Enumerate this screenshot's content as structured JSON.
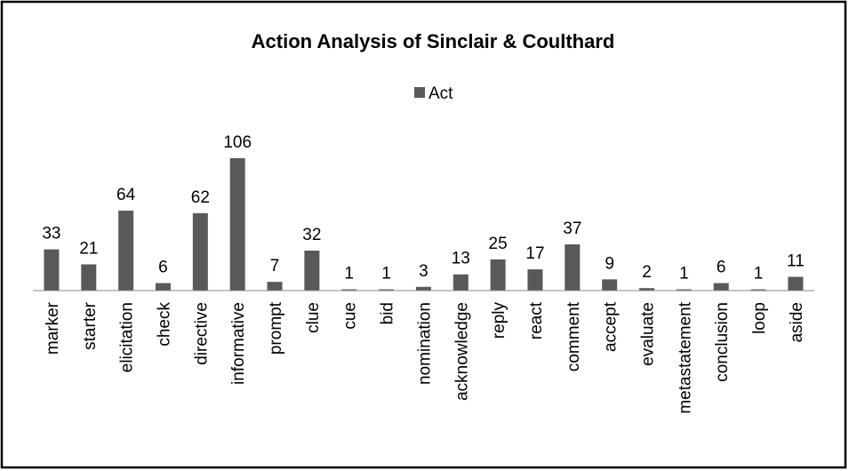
{
  "chart_data": {
    "type": "bar",
    "title": "Action Analysis of Sinclair & Coulthard",
    "categories": [
      "marker",
      "starter",
      "elicitation",
      "check",
      "directive",
      "informative",
      "prompt",
      "clue",
      "cue",
      "bid",
      "nomination",
      "acknowledge",
      "reply",
      "react",
      "comment",
      "accept",
      "evaluate",
      "metastatement",
      "conclusion",
      "loop",
      "aside"
    ],
    "series": [
      {
        "name": "Act",
        "color": "#595959",
        "values": [
          33,
          21,
          64,
          6,
          62,
          106,
          7,
          32,
          1,
          1,
          3,
          13,
          25,
          17,
          37,
          9,
          2,
          1,
          6,
          1,
          11
        ]
      }
    ],
    "legend": "top",
    "grid": false
  }
}
